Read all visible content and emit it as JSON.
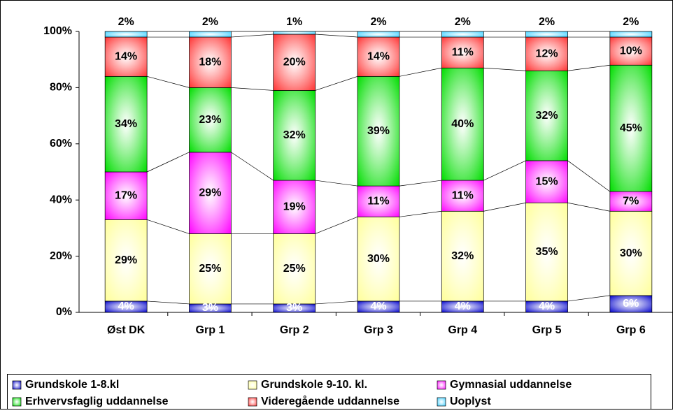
{
  "chart_data": {
    "type": "stacked_bar",
    "categories": [
      "Øst DK",
      "Grp 1",
      "Grp 2",
      "Grp 3",
      "Grp 4",
      "Grp 5",
      "Grp 6"
    ],
    "series": [
      {
        "name": "Grundskole 1-8.kl",
        "color": "#0000cc",
        "values": [
          4,
          3,
          3,
          4,
          4,
          4,
          6
        ],
        "value_labels": [
          "4%",
          "3%",
          "3%",
          "4%",
          "4%",
          "4%",
          "6%"
        ]
      },
      {
        "name": "Grundskole 9-10. kl.",
        "color": "#ffff99",
        "values": [
          29,
          25,
          25,
          30,
          32,
          35,
          30
        ],
        "value_labels": [
          "29%",
          "25%",
          "25%",
          "30%",
          "32%",
          "35%",
          "30%"
        ]
      },
      {
        "name": "Gymnasial uddannelse",
        "color": "#ff00ff",
        "values": [
          17,
          29,
          19,
          11,
          11,
          15,
          7
        ],
        "value_labels": [
          "17%",
          "29%",
          "19%",
          "11%",
          "11%",
          "15%",
          "7%"
        ]
      },
      {
        "name": "Erhvervsfaglig uddannelse",
        "color": "#00dd00",
        "values": [
          34,
          23,
          32,
          39,
          40,
          32,
          45
        ],
        "value_labels": [
          "34%",
          "23%",
          "32%",
          "39%",
          "40%",
          "32%",
          "45%"
        ]
      },
      {
        "name": "Videregående uddannelse",
        "color": "#ff3333",
        "values": [
          14,
          18,
          20,
          14,
          11,
          12,
          10
        ],
        "value_labels": [
          "14%",
          "18%",
          "20%",
          "14%",
          "11%",
          "12%",
          "10%"
        ]
      },
      {
        "name": "Uoplyst",
        "color": "#33ccff",
        "values": [
          2,
          2,
          1,
          2,
          2,
          2,
          2
        ],
        "value_labels": [
          "2%",
          "2%",
          "1%",
          "2%",
          "2%",
          "2%",
          "2%"
        ]
      }
    ],
    "ylim": [
      0,
      100
    ],
    "yticks": [
      {
        "value": 0,
        "label": "0%"
      },
      {
        "value": 20,
        "label": "20%"
      },
      {
        "value": 40,
        "label": "40%"
      },
      {
        "value": 60,
        "label": "60%"
      },
      {
        "value": 80,
        "label": "80%"
      },
      {
        "value": 100,
        "label": "100%"
      }
    ],
    "legend": "bottom"
  }
}
